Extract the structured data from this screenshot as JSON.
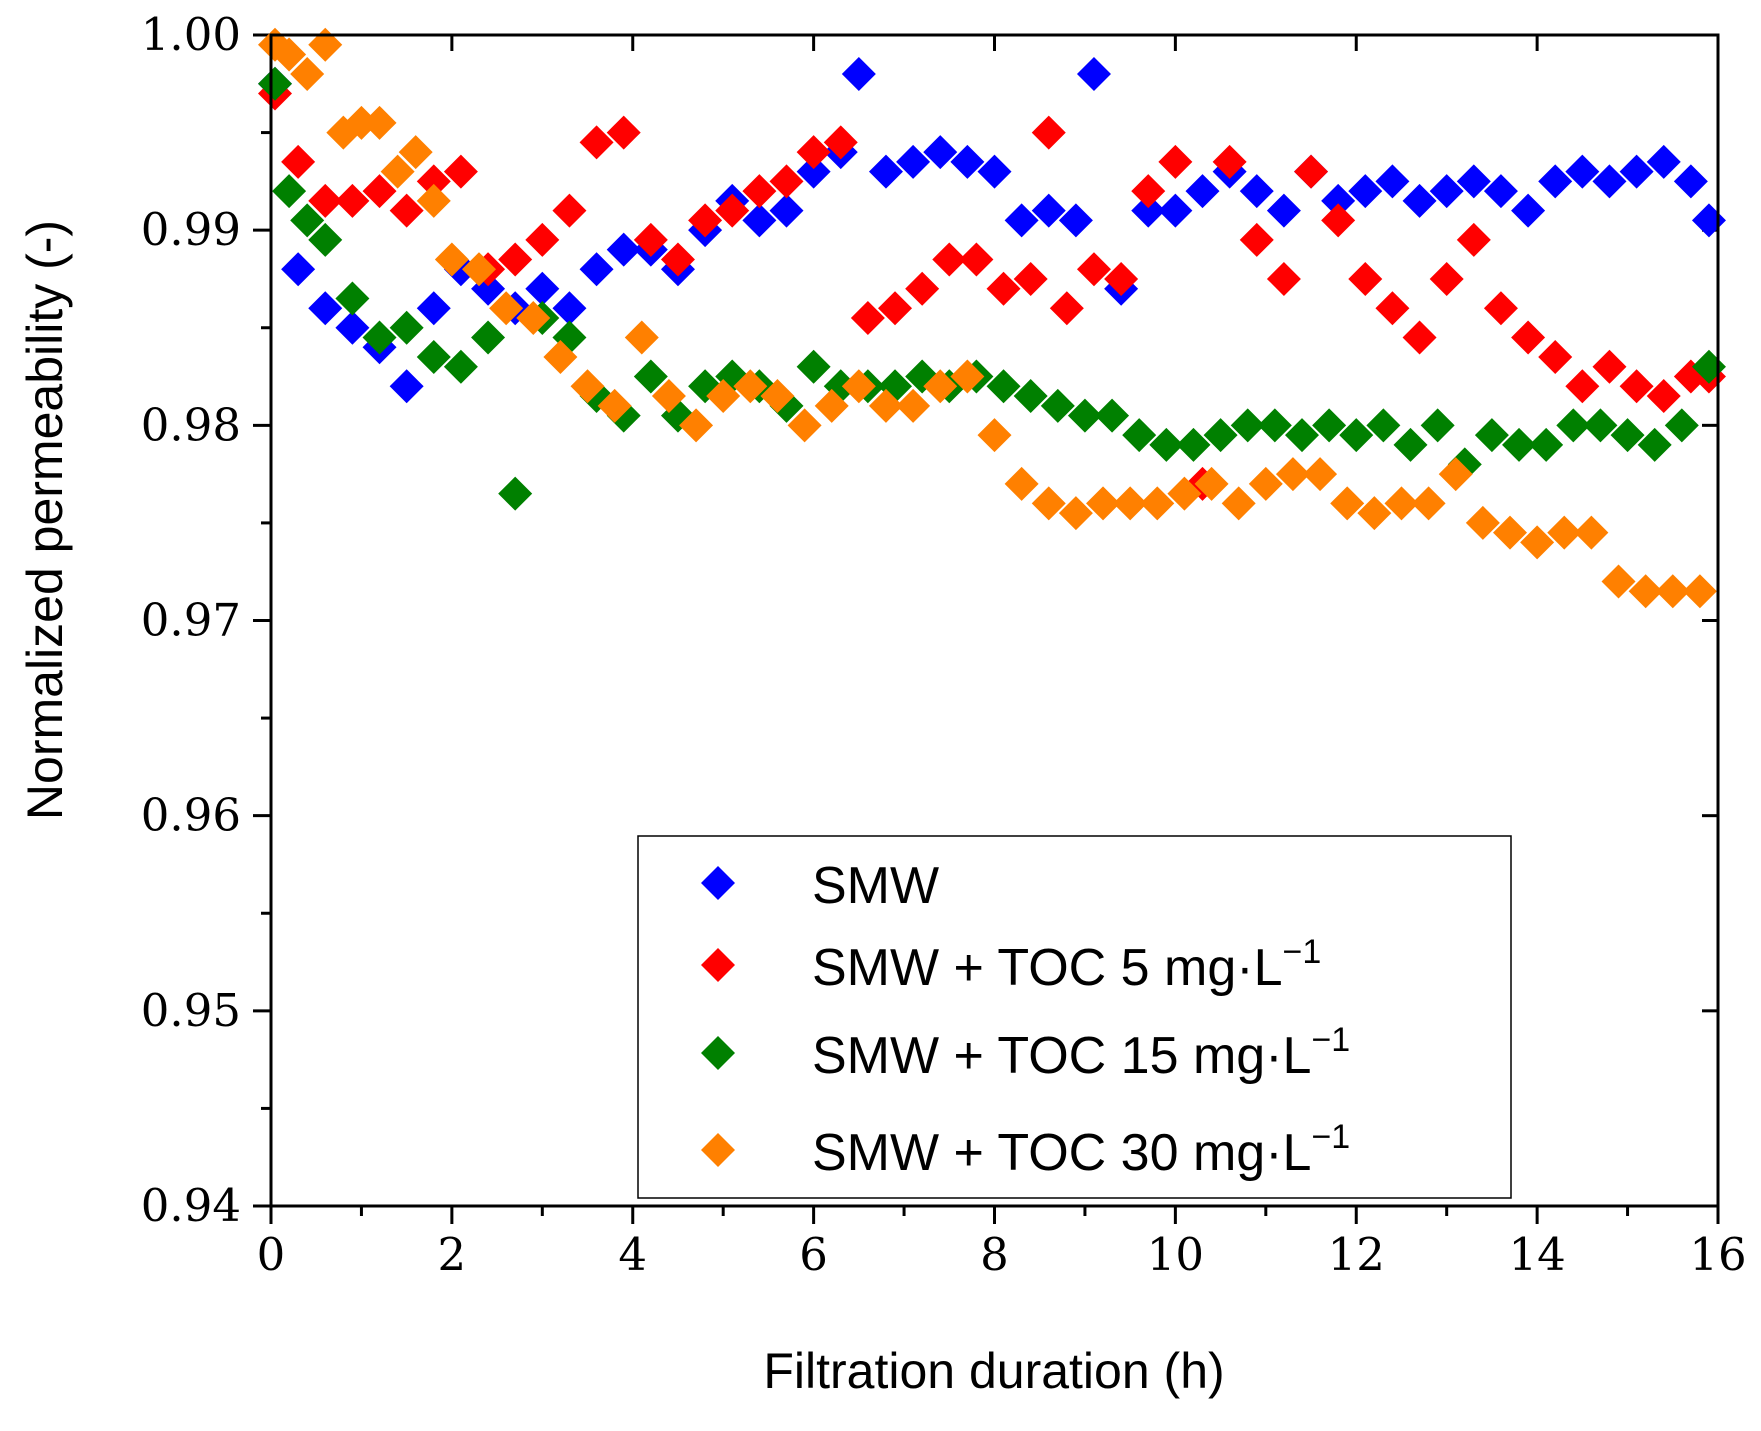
{
  "chart_data": {
    "type": "scatter",
    "title": "",
    "xlabel": "Filtration duration (h)",
    "ylabel": "Normalized permeability (-)",
    "xlim": [
      0,
      16
    ],
    "ylim": [
      0.94,
      1.0
    ],
    "xticks": [
      "0",
      "2",
      "4",
      "6",
      "8",
      "10",
      "12",
      "14",
      "16"
    ],
    "yticks": [
      "0.94",
      "0.95",
      "0.96",
      "0.97",
      "0.98",
      "0.99",
      "1.00"
    ],
    "legend_position": "lower-center",
    "series": [
      {
        "name": "SMW",
        "legend_main": "SMW",
        "legend_unit": "",
        "color": "#0000ff",
        "x": [
          0.0,
          0.3,
          0.6,
          0.9,
          1.2,
          1.5,
          1.8,
          2.1,
          2.4,
          2.7,
          3.0,
          3.3,
          3.6,
          3.9,
          4.2,
          4.5,
          4.8,
          5.1,
          5.4,
          5.7,
          6.0,
          6.3,
          6.5,
          6.8,
          7.1,
          7.4,
          7.7,
          8.0,
          8.3,
          8.6,
          8.9,
          9.1,
          9.4,
          9.7,
          10.0,
          10.3,
          10.6,
          10.9,
          11.2,
          11.5,
          11.8,
          12.1,
          12.4,
          12.7,
          13.0,
          13.3,
          13.6,
          13.9,
          14.2,
          14.5,
          14.8,
          15.1,
          15.4,
          15.7,
          15.9
        ],
        "y": [
          0.9975,
          0.988,
          0.986,
          0.985,
          0.984,
          0.982,
          0.986,
          0.988,
          0.987,
          0.986,
          0.987,
          0.986,
          0.988,
          0.989,
          0.989,
          0.988,
          0.99,
          0.9915,
          0.9905,
          0.991,
          0.993,
          0.994,
          0.998,
          0.993,
          0.9935,
          0.994,
          0.9935,
          0.993,
          0.9905,
          0.991,
          0.9905,
          0.998,
          0.987,
          0.991,
          0.991,
          0.992,
          0.993,
          0.992,
          0.991,
          0.993,
          0.9915,
          0.992,
          0.9925,
          0.9915,
          0.992,
          0.9925,
          0.992,
          0.991,
          0.9925,
          0.993,
          0.9925,
          0.993,
          0.9935,
          0.9925,
          0.9905
        ]
      },
      {
        "name": "SMW + TOC 5 mg·L−1",
        "legend_main": "SMW + TOC 5   mg·L",
        "legend_unit": "−1",
        "color": "#ff0000",
        "x": [
          0.0,
          0.3,
          0.6,
          0.9,
          1.2,
          1.5,
          1.8,
          2.1,
          2.4,
          2.7,
          3.0,
          3.3,
          3.6,
          3.9,
          4.2,
          4.5,
          4.8,
          5.1,
          5.4,
          5.7,
          6.0,
          6.3,
          6.6,
          6.9,
          7.2,
          7.5,
          7.8,
          8.1,
          8.4,
          8.6,
          8.8,
          9.1,
          9.4,
          9.7,
          10.0,
          10.3,
          10.6,
          10.9,
          11.2,
          11.5,
          11.8,
          12.1,
          12.4,
          12.7,
          13.0,
          13.3,
          13.6,
          13.9,
          14.2,
          14.5,
          14.8,
          15.1,
          15.4,
          15.7,
          15.9
        ],
        "y": [
          0.997,
          0.9935,
          0.9915,
          0.9915,
          0.992,
          0.991,
          0.9925,
          0.993,
          0.988,
          0.9885,
          0.9895,
          0.991,
          0.9945,
          0.995,
          0.9895,
          0.9885,
          0.9905,
          0.991,
          0.992,
          0.9925,
          0.994,
          0.9945,
          0.9855,
          0.986,
          0.987,
          0.9885,
          0.9885,
          0.987,
          0.9875,
          0.995,
          0.986,
          0.988,
          0.9875,
          0.992,
          0.9935,
          0.977,
          0.9935,
          0.9895,
          0.9875,
          0.993,
          0.9905,
          0.9875,
          0.986,
          0.9845,
          0.9875,
          0.9895,
          0.986,
          0.9845,
          0.9835,
          0.982,
          0.983,
          0.982,
          0.9815,
          0.9825,
          0.9825
        ]
      },
      {
        "name": "SMW + TOC 15 mg·L−1",
        "legend_main": "SMW + TOC 15 mg·L",
        "legend_unit": "−1",
        "color": "#008000",
        "x": [
          0.0,
          0.2,
          0.4,
          0.6,
          0.9,
          1.2,
          1.5,
          1.8,
          2.1,
          2.4,
          2.7,
          3.0,
          3.3,
          3.6,
          3.9,
          4.2,
          4.5,
          4.8,
          5.1,
          5.4,
          5.7,
          6.0,
          6.3,
          6.6,
          6.9,
          7.2,
          7.5,
          7.8,
          8.1,
          8.4,
          8.7,
          9.0,
          9.3,
          9.6,
          9.9,
          10.2,
          10.5,
          10.8,
          11.1,
          11.4,
          11.7,
          12.0,
          12.3,
          12.6,
          12.9,
          13.2,
          13.5,
          13.8,
          14.1,
          14.4,
          14.7,
          15.0,
          15.3,
          15.6,
          15.9
        ],
        "y": [
          0.9975,
          0.992,
          0.9905,
          0.9895,
          0.9865,
          0.9845,
          0.985,
          0.9835,
          0.983,
          0.9845,
          0.9765,
          0.9855,
          0.9845,
          0.9815,
          0.9805,
          0.9825,
          0.9805,
          0.982,
          0.9825,
          0.982,
          0.981,
          0.983,
          0.982,
          0.982,
          0.982,
          0.9825,
          0.982,
          0.9825,
          0.982,
          0.9815,
          0.981,
          0.9805,
          0.9805,
          0.9795,
          0.979,
          0.979,
          0.9795,
          0.98,
          0.98,
          0.9795,
          0.98,
          0.9795,
          0.98,
          0.979,
          0.98,
          0.978,
          0.9795,
          0.979,
          0.979,
          0.98,
          0.98,
          0.9795,
          0.979,
          0.98,
          0.983
        ]
      },
      {
        "name": "SMW + TOC 30 mg·L−1",
        "legend_main": "SMW + TOC 30 mg·L",
        "legend_unit": "−1",
        "color": "#ff8000",
        "x": [
          0.0,
          0.2,
          0.4,
          0.6,
          0.8,
          1.0,
          1.2,
          1.4,
          1.6,
          1.8,
          2.0,
          2.3,
          2.6,
          2.9,
          3.2,
          3.5,
          3.8,
          4.1,
          4.4,
          4.7,
          5.0,
          5.3,
          5.6,
          5.9,
          6.2,
          6.5,
          6.8,
          7.1,
          7.4,
          7.7,
          8.0,
          8.3,
          8.6,
          8.9,
          9.2,
          9.5,
          9.8,
          10.1,
          10.4,
          10.7,
          11.0,
          11.3,
          11.6,
          11.9,
          12.2,
          12.5,
          12.8,
          13.1,
          13.4,
          13.7,
          14.0,
          14.3,
          14.6,
          14.9,
          15.2,
          15.5,
          15.8
        ],
        "y": [
          0.9995,
          0.999,
          0.998,
          0.9995,
          0.995,
          0.9955,
          0.9955,
          0.993,
          0.994,
          0.9915,
          0.9885,
          0.988,
          0.986,
          0.9855,
          0.9835,
          0.982,
          0.981,
          0.9845,
          0.9815,
          0.98,
          0.9815,
          0.982,
          0.9815,
          0.98,
          0.981,
          0.982,
          0.981,
          0.981,
          0.982,
          0.9825,
          0.9795,
          0.977,
          0.976,
          0.9755,
          0.976,
          0.976,
          0.976,
          0.9765,
          0.977,
          0.976,
          0.977,
          0.9775,
          0.9775,
          0.976,
          0.9755,
          0.976,
          0.976,
          0.9775,
          0.975,
          0.9745,
          0.974,
          0.9745,
          0.9745,
          0.972,
          0.9715,
          0.9715,
          0.9715
        ]
      }
    ]
  }
}
